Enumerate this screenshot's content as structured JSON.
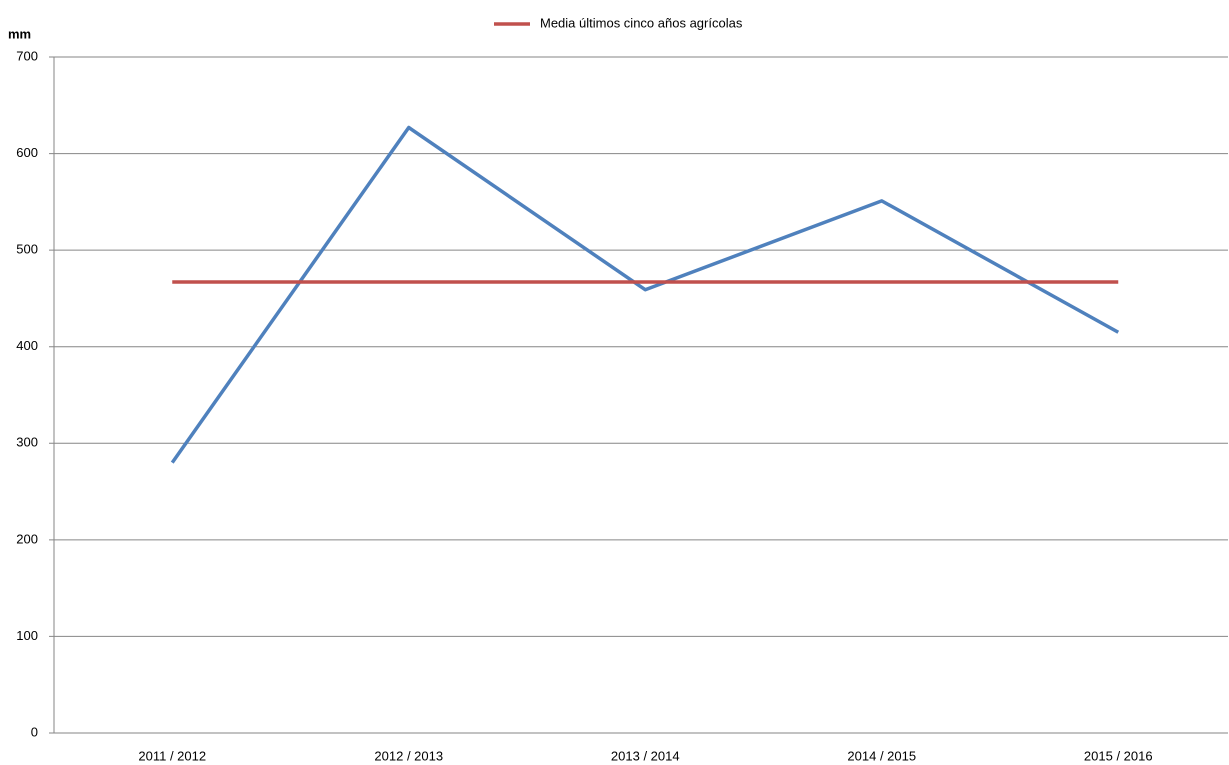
{
  "chart_data": {
    "type": "line",
    "y_label": "mm",
    "categories": [
      "2011 / 2012",
      "2012 / 2013",
      "2013 / 2014",
      "2014 / 2015",
      "2015 / 2016"
    ],
    "series": [
      {
        "color": "#4f81bd",
        "values": [
          280,
          627,
          459,
          551,
          415
        ]
      },
      {
        "name": "Media últimos cinco años agrícolas",
        "color": "#c0504d",
        "values": [
          467,
          467,
          467,
          467,
          467
        ]
      }
    ],
    "ylim": [
      0,
      700
    ],
    "yticks": [
      0,
      100,
      200,
      300,
      400,
      500,
      600,
      700
    ],
    "grid": true,
    "legend": "top"
  }
}
